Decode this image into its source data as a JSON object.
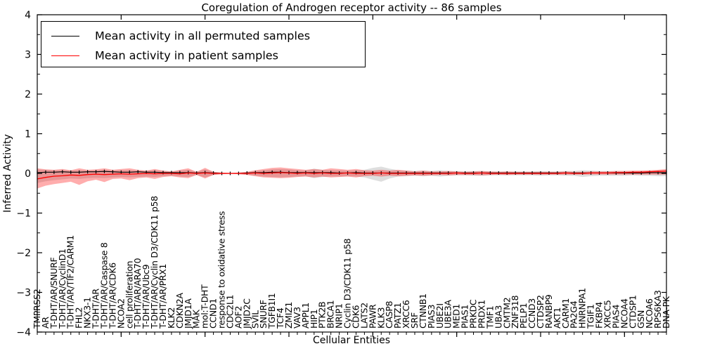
{
  "figure": {
    "title": "Coregulation of Androgen receptor activity -- 86 samples",
    "xlabel": "Cellular Entities",
    "ylabel": "Inferred Activity"
  },
  "legend": {
    "items": [
      {
        "label": "Mean activity in all permuted samples",
        "color": "#000000"
      },
      {
        "label": "Mean activity in patient samples",
        "color": "#ff0000"
      }
    ]
  },
  "chart_data": {
    "type": "line",
    "title": "Coregulation of Androgen receptor activity -- 86 samples",
    "xlabel": "Cellular Entities",
    "ylabel": "Inferred Activity",
    "ylim": [
      -4,
      4
    ],
    "yticks": [
      -4,
      -3,
      -2,
      -1,
      0,
      1,
      2,
      3,
      4
    ],
    "grid": false,
    "legend_position": "upper left",
    "categories": [
      "TMPRSS2",
      "AR",
      "T-DHT/AR/SNURF",
      "T-DHT/AR/CyclinD1",
      "T-DHT/AR/TIF2/CARM1",
      "FHL2",
      "NKX3-1",
      "T-DHT/AR",
      "T-DHT/AR/Caspase 8",
      "T-DHT/AR/CDK6",
      "NCOA2",
      "cell proliferation",
      "T-DHT/AR/ARA70",
      "T-DHT/AR/Ubc9",
      "T-DHT/AR/Cyclin D3/CDK11 p58",
      "T-DHT/AR/PRX1",
      "KLK2",
      "CDKN2A",
      "JMJD1A",
      "MAK",
      "mol:T-DHT",
      "CCND1",
      "response to oxidative stress",
      "CDC2L1",
      "AOF2",
      "JMJD2C",
      "SVIL",
      "SNURF",
      "TGFB1I1",
      "TCF4",
      "ZMIZ1",
      "VAV3",
      "APPL1",
      "HIP1",
      "PTK2B",
      "BRCA1",
      "NRIP1",
      "Cyclin D3/CDK11 p58",
      "CDK6",
      "LATS2",
      "PAWR",
      "KLK3",
      "CASP8",
      "PATZ1",
      "XRCC6",
      "SRF",
      "CTNNB1",
      "PIAS3",
      "UBE2I",
      "UBE3A",
      "MED1",
      "PIAS1",
      "PRKDC",
      "PRDX1",
      "TMF1",
      "UBA3",
      "CMTM2",
      "ZNF318",
      "PELP1",
      "CCND3",
      "CTDSP2",
      "RANBP9",
      "AKT1",
      "CARM1",
      "PA2G4",
      "HNRNPA1",
      "TGIF1",
      "FKBP4",
      "XRCC5",
      "PIAS4",
      "NCOA4",
      "CTDSP1",
      "GSN",
      "NCOA6",
      "RPS6KA3",
      "DNA-PK"
    ],
    "series": [
      {
        "name": "Mean activity in all permuted samples",
        "color": "#000000",
        "band_color": "#000000",
        "band_alpha": 0.13,
        "values": [
          0.02,
          0.03,
          0.03,
          0.04,
          0.03,
          0.03,
          0.04,
          0.04,
          0.05,
          0.04,
          0.03,
          0.03,
          0.04,
          0.03,
          0.03,
          0.02,
          0.02,
          0.02,
          0.02,
          0.01,
          0.02,
          0.01,
          0.0,
          0.0,
          0.0,
          0.01,
          0.02,
          0.02,
          0.03,
          0.03,
          0.02,
          0.02,
          0.02,
          0.02,
          0.02,
          0.02,
          0.01,
          0.01,
          0.02,
          0.01,
          0.01,
          0.01,
          0.01,
          0.01,
          0.01,
          0.01,
          0.01,
          0.01,
          0.01,
          0.01,
          0.01,
          0.01,
          0.01,
          0.01,
          0.01,
          0.01,
          0.01,
          0.01,
          0.01,
          0.01,
          0.01,
          0.01,
          0.01,
          0.01,
          0.01,
          0.01,
          0.01,
          0.01,
          0.01,
          0.01,
          0.01,
          0.01,
          0.01,
          0.02,
          0.02,
          0.02
        ],
        "band_upper": [
          0.1,
          0.09,
          0.08,
          0.08,
          0.07,
          0.08,
          0.07,
          0.08,
          0.09,
          0.07,
          0.08,
          0.08,
          0.07,
          0.06,
          0.08,
          0.06,
          0.05,
          0.07,
          0.09,
          0.04,
          0.1,
          0.04,
          0.02,
          0.01,
          0.02,
          0.03,
          0.06,
          0.08,
          0.1,
          0.11,
          0.1,
          0.08,
          0.07,
          0.12,
          0.09,
          0.08,
          0.08,
          0.07,
          0.08,
          0.09,
          0.14,
          0.17,
          0.12,
          0.08,
          0.07,
          0.06,
          0.07,
          0.06,
          0.08,
          0.06,
          0.06,
          0.05,
          0.06,
          0.06,
          0.05,
          0.05,
          0.05,
          0.05,
          0.05,
          0.05,
          0.06,
          0.05,
          0.05,
          0.06,
          0.06,
          0.08,
          0.07,
          0.06,
          0.06,
          0.06,
          0.06,
          0.05,
          0.06,
          0.06,
          0.07,
          0.08
        ],
        "band_lower": [
          -0.24,
          -0.2,
          -0.17,
          -0.15,
          -0.13,
          -0.14,
          -0.12,
          -0.11,
          -0.12,
          -0.1,
          -0.09,
          -0.1,
          -0.09,
          -0.08,
          -0.09,
          -0.07,
          -0.06,
          -0.08,
          -0.09,
          -0.04,
          -0.1,
          -0.04,
          -0.02,
          -0.01,
          -0.02,
          -0.03,
          -0.06,
          -0.08,
          -0.09,
          -0.1,
          -0.09,
          -0.08,
          -0.07,
          -0.12,
          -0.09,
          -0.08,
          -0.08,
          -0.07,
          -0.08,
          -0.1,
          -0.16,
          -0.21,
          -0.13,
          -0.08,
          -0.07,
          -0.06,
          -0.07,
          -0.06,
          -0.08,
          -0.06,
          -0.05,
          -0.05,
          -0.06,
          -0.06,
          -0.05,
          -0.05,
          -0.05,
          -0.05,
          -0.05,
          -0.05,
          -0.06,
          -0.05,
          -0.05,
          -0.06,
          -0.06,
          -0.09,
          -0.07,
          -0.06,
          -0.06,
          -0.06,
          -0.06,
          -0.05,
          -0.06,
          -0.06,
          -0.07,
          -0.07
        ],
        "markers": "vertical-tick"
      },
      {
        "name": "Mean activity in patient samples",
        "color": "#ff0000",
        "band_color": "#ff0000",
        "band_alpha": 0.32,
        "values": [
          -0.14,
          -0.1,
          -0.07,
          -0.06,
          -0.04,
          -0.05,
          -0.03,
          -0.02,
          -0.03,
          -0.02,
          -0.01,
          -0.02,
          -0.01,
          0.0,
          -0.01,
          0.0,
          0.0,
          -0.01,
          0.01,
          0.0,
          0.01,
          0.0,
          0.0,
          0.0,
          0.0,
          0.0,
          0.01,
          0.0,
          0.01,
          0.02,
          0.01,
          0.0,
          0.01,
          0.0,
          0.01,
          0.0,
          0.0,
          0.01,
          0.0,
          0.0,
          0.0,
          0.01,
          0.0,
          0.0,
          0.0,
          0.0,
          0.0,
          0.0,
          0.0,
          0.0,
          0.01,
          0.0,
          0.0,
          0.01,
          0.0,
          0.0,
          0.0,
          0.0,
          0.0,
          0.0,
          0.0,
          0.0,
          0.0,
          0.01,
          0.0,
          0.0,
          0.01,
          0.01,
          0.01,
          0.02,
          0.02,
          0.03,
          0.03,
          0.04,
          0.05,
          0.06
        ],
        "band_upper": [
          0.13,
          0.1,
          0.09,
          0.11,
          0.08,
          0.13,
          0.09,
          0.1,
          0.13,
          0.09,
          0.11,
          0.13,
          0.09,
          0.07,
          0.11,
          0.07,
          0.05,
          0.09,
          0.13,
          0.04,
          0.14,
          0.04,
          0.02,
          0.01,
          0.02,
          0.04,
          0.08,
          0.11,
          0.14,
          0.15,
          0.13,
          0.11,
          0.09,
          0.11,
          0.09,
          0.13,
          0.11,
          0.09,
          0.11,
          0.08,
          0.07,
          0.09,
          0.07,
          0.09,
          0.07,
          0.05,
          0.07,
          0.05,
          0.05,
          0.06,
          0.05,
          0.04,
          0.05,
          0.06,
          0.05,
          0.04,
          0.05,
          0.04,
          0.04,
          0.04,
          0.04,
          0.04,
          0.04,
          0.05,
          0.04,
          0.04,
          0.05,
          0.05,
          0.05,
          0.06,
          0.06,
          0.07,
          0.07,
          0.08,
          0.09,
          0.11
        ],
        "band_lower": [
          -0.38,
          -0.31,
          -0.27,
          -0.24,
          -0.21,
          -0.29,
          -0.2,
          -0.16,
          -0.22,
          -0.14,
          -0.13,
          -0.17,
          -0.12,
          -0.1,
          -0.14,
          -0.09,
          -0.07,
          -0.1,
          -0.12,
          -0.04,
          -0.13,
          -0.04,
          -0.02,
          -0.01,
          -0.02,
          -0.04,
          -0.07,
          -0.1,
          -0.11,
          -0.12,
          -0.11,
          -0.09,
          -0.08,
          -0.1,
          -0.08,
          -0.1,
          -0.09,
          -0.08,
          -0.1,
          -0.07,
          -0.06,
          -0.08,
          -0.06,
          -0.07,
          -0.06,
          -0.05,
          -0.06,
          -0.05,
          -0.04,
          -0.05,
          -0.04,
          -0.04,
          -0.04,
          -0.05,
          -0.04,
          -0.03,
          -0.04,
          -0.03,
          -0.03,
          -0.03,
          -0.03,
          -0.03,
          -0.03,
          -0.03,
          -0.03,
          -0.03,
          -0.03,
          -0.03,
          -0.03,
          -0.03,
          -0.03,
          -0.03,
          -0.03,
          -0.03,
          -0.03,
          -0.03
        ],
        "markers": "none"
      }
    ]
  }
}
